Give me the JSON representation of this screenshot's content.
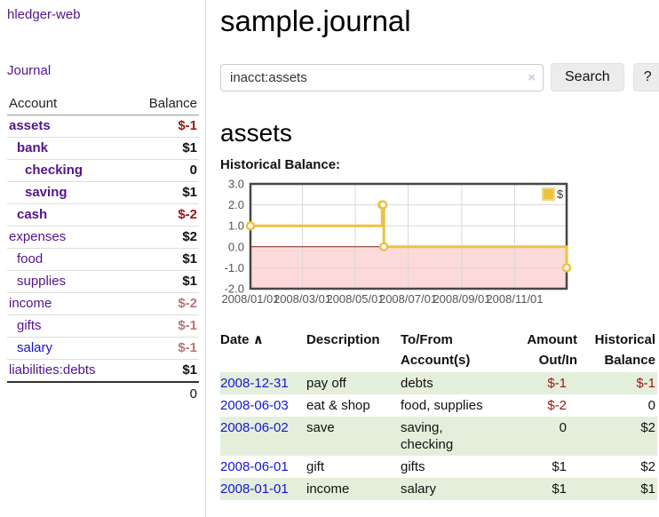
{
  "app": {
    "brand": "hledger-web",
    "nav_journal": "Journal"
  },
  "sidebar": {
    "col_account": "Account",
    "col_balance": "Balance",
    "accounts": [
      {
        "label": "assets",
        "depth": 0,
        "in_account": true,
        "balance": "$-1",
        "balance_class": "neg-strong"
      },
      {
        "label": "bank",
        "depth": 1,
        "in_account": true,
        "balance": "$1",
        "balance_class": "pos"
      },
      {
        "label": "checking",
        "depth": 2,
        "in_account": true,
        "balance": "0",
        "balance_class": "pos"
      },
      {
        "label": "saving",
        "depth": 2,
        "in_account": true,
        "balance": "$1",
        "balance_class": "pos"
      },
      {
        "label": "cash",
        "depth": 1,
        "in_account": true,
        "balance": "$-2",
        "balance_class": "neg-strong"
      },
      {
        "label": "expenses",
        "depth": 0,
        "in_account": false,
        "balance": "$2",
        "balance_class": "pos"
      },
      {
        "label": "food",
        "depth": 1,
        "in_account": false,
        "balance": "$1",
        "balance_class": "pos"
      },
      {
        "label": "supplies",
        "depth": 1,
        "in_account": false,
        "balance": "$1",
        "balance_class": "pos"
      },
      {
        "label": "income",
        "depth": 0,
        "in_account": false,
        "balance": "$-2",
        "balance_class": "neg-muted"
      },
      {
        "label": "gifts",
        "depth": 1,
        "in_account": false,
        "balance": "$-1",
        "balance_class": "neg-muted"
      },
      {
        "label": "salary",
        "depth": 1,
        "in_account": false,
        "balance": "$-1",
        "balance_class": "neg-muted",
        "link": "blue"
      },
      {
        "label": "liabilities:debts",
        "depth": 0,
        "in_account": false,
        "balance": "$1",
        "balance_class": "pos"
      }
    ],
    "total": "0"
  },
  "main": {
    "title": "sample.journal",
    "account_heading": "assets",
    "chart_label": "Historical Balance:"
  },
  "search": {
    "value": "inacct:assets",
    "clear_icon": "×",
    "search_button": "Search",
    "help_button": "?"
  },
  "chart_data": {
    "type": "line",
    "steps": true,
    "title": "Historical Balance",
    "legend": {
      "position": "top-right",
      "label": "$"
    },
    "series": [
      {
        "name": "$",
        "color": "#EDC240",
        "points": [
          {
            "date": "2008-01-01",
            "day": 0,
            "value": 1
          },
          {
            "date": "2008-06-01",
            "day": 152,
            "value": 2
          },
          {
            "date": "2008-06-02",
            "day": 153,
            "value": 2
          },
          {
            "date": "2008-06-03",
            "day": 154,
            "value": 0
          },
          {
            "date": "2008-12-31",
            "day": 365,
            "value": -1
          }
        ]
      }
    ],
    "x_domain_days": [
      0,
      365
    ],
    "xticks": [
      {
        "label": "2008/01/01",
        "day": 0
      },
      {
        "label": "2008/03/01",
        "day": 60
      },
      {
        "label": "2008/05/01",
        "day": 121
      },
      {
        "label": "2008/07/01",
        "day": 182
      },
      {
        "label": "2008/09/01",
        "day": 244
      },
      {
        "label": "2008/11/01",
        "day": 305
      }
    ],
    "yticks": [
      {
        "label": "3.0",
        "value": 3
      },
      {
        "label": "2.0",
        "value": 2
      },
      {
        "label": "1.0",
        "value": 1
      },
      {
        "label": "0.0",
        "value": 0
      },
      {
        "label": "-1.0",
        "value": -1
      },
      {
        "label": "-2.0",
        "value": -2
      }
    ],
    "ylim": [
      -2,
      3
    ],
    "grid": true,
    "colors": {
      "grid": "#d8d8d8",
      "border": "#464646",
      "zero_line": "#8c1a1a",
      "negative_fill": "#fcdada",
      "tick_label": "#545454"
    }
  },
  "table": {
    "headers": {
      "date": "Date",
      "description": "Description",
      "tofrom": "To/From\nAccount(s)",
      "amount": "Amount\nOut/In",
      "balance": "Historical\nBalance"
    },
    "sort_asc_icon": "∧",
    "rows": [
      {
        "date": "2008-12-31",
        "description": "pay off",
        "accounts": "debts",
        "amount": "$-1",
        "amount_neg": true,
        "balance": "$-1",
        "balance_neg": true
      },
      {
        "date": "2008-06-03",
        "description": "eat & shop",
        "accounts": "food, supplies",
        "amount": "$-2",
        "amount_neg": true,
        "balance": "0",
        "balance_neg": false
      },
      {
        "date": "2008-06-02",
        "description": "save",
        "accounts": "saving,\nchecking",
        "amount": "0",
        "amount_neg": false,
        "balance": "$2",
        "balance_neg": false
      },
      {
        "date": "2008-06-01",
        "description": "gift",
        "accounts": "gifts",
        "amount": "$1",
        "amount_neg": false,
        "balance": "$2",
        "balance_neg": false
      },
      {
        "date": "2008-01-01",
        "description": "income",
        "accounts": "salary",
        "amount": "$1",
        "amount_neg": false,
        "balance": "$1",
        "balance_neg": false
      }
    ]
  }
}
